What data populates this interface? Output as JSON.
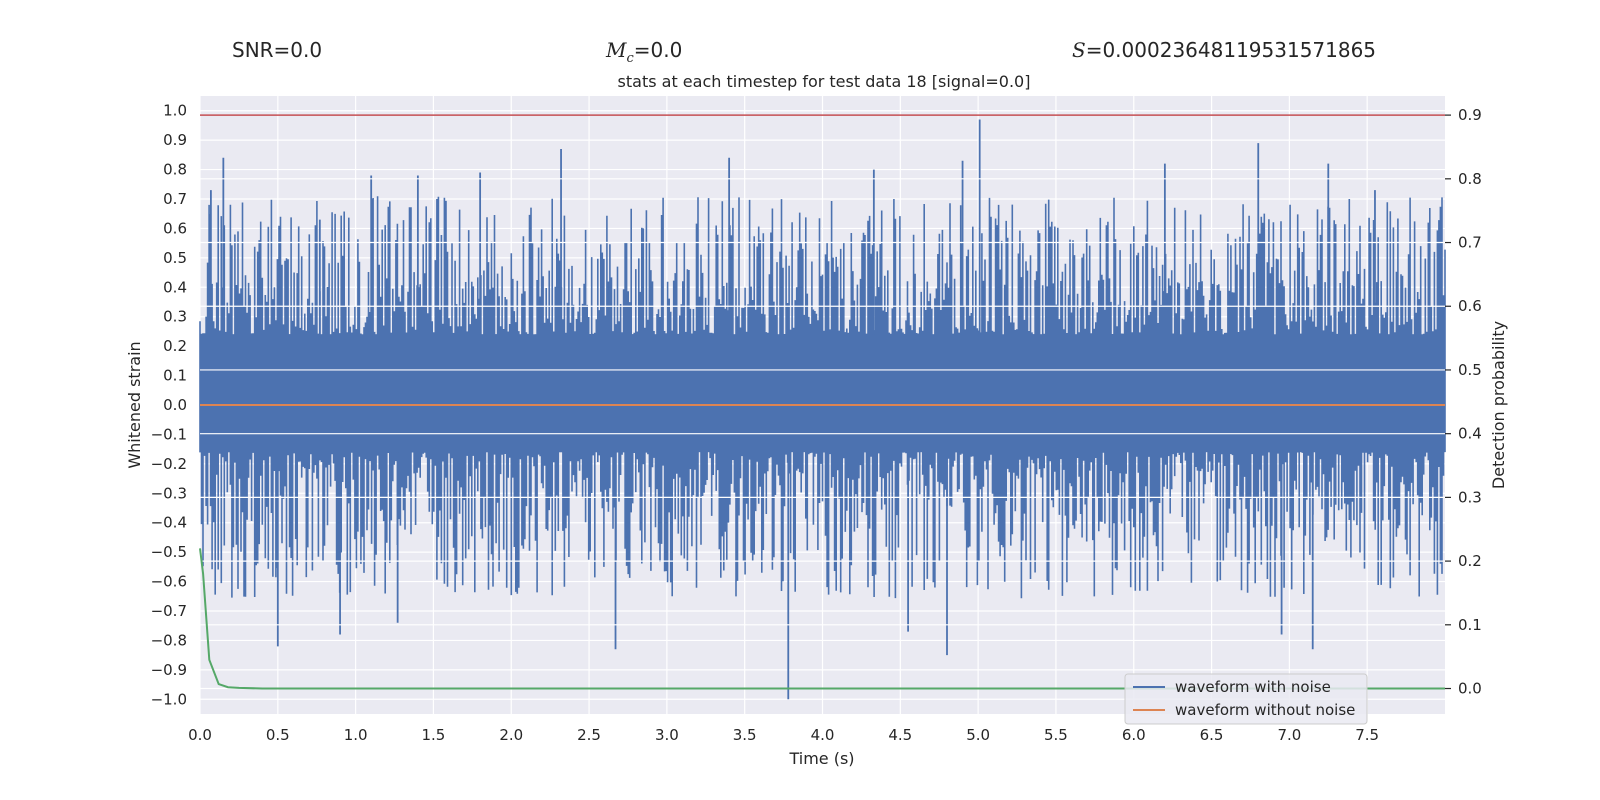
{
  "stats": {
    "snr": "SNR=0.0",
    "mc_symbol": "M",
    "mc_sub": "c",
    "mc_value": "=0.0",
    "s_symbol": "S",
    "s_value": "=0.00023648119531571865"
  },
  "chart_data": {
    "type": "line",
    "title": "stats at each timestep for test data 18 [signal=0.0]",
    "xlabel": "Time (s)",
    "ylabel_left": "Whitened strain",
    "ylabel_right": "Detection probability",
    "xlim": [
      0.0,
      8.0
    ],
    "ylim_left": [
      -1.05,
      1.05
    ],
    "ylim_right": [
      -0.04,
      0.93
    ],
    "grid": true,
    "legend_position": "bottom-right",
    "x_ticks": [
      "0.0",
      "0.5",
      "1.0",
      "1.5",
      "2.0",
      "2.5",
      "3.0",
      "3.5",
      "4.0",
      "4.5",
      "5.0",
      "5.5",
      "6.0",
      "6.5",
      "7.0",
      "7.5"
    ],
    "y_ticks_left": [
      "1.0",
      "0.9",
      "0.8",
      "0.7",
      "0.6",
      "0.5",
      "0.4",
      "0.3",
      "0.2",
      "0.1",
      "0.0",
      "−0.1",
      "−0.2",
      "−0.3",
      "−0.4",
      "−0.5",
      "−0.6",
      "−0.7",
      "−0.8",
      "−0.9",
      "−1.0"
    ],
    "y_ticks_right": [
      "0.9",
      "0.8",
      "0.7",
      "0.6",
      "0.5",
      "0.4",
      "0.3",
      "0.2",
      "0.1",
      "0.0"
    ],
    "threshold": 0.9,
    "colors": {
      "noise": "#4c72b0",
      "clean": "#dd8452",
      "prob": "#55a868",
      "threshold": "#c44e52",
      "background": "#eaeaf2",
      "grid": "#ffffff"
    },
    "series": [
      {
        "name": "waveform with noise",
        "axis": "left",
        "peaks": [
          {
            "x": 0.07,
            "y": 0.73
          },
          {
            "x": 0.15,
            "y": 0.84
          },
          {
            "x": 0.5,
            "y": -0.82
          },
          {
            "x": 0.77,
            "y": 0.63
          },
          {
            "x": 0.9,
            "y": -0.78
          },
          {
            "x": 1.1,
            "y": 0.78
          },
          {
            "x": 1.27,
            "y": -0.74
          },
          {
            "x": 1.4,
            "y": 0.78
          },
          {
            "x": 1.8,
            "y": 0.79
          },
          {
            "x": 2.32,
            "y": 0.87
          },
          {
            "x": 2.67,
            "y": -0.83
          },
          {
            "x": 3.4,
            "y": 0.84
          },
          {
            "x": 3.78,
            "y": -1.0
          },
          {
            "x": 4.33,
            "y": 0.8
          },
          {
            "x": 4.55,
            "y": -0.77
          },
          {
            "x": 4.8,
            "y": -0.85
          },
          {
            "x": 4.9,
            "y": 0.83
          },
          {
            "x": 5.01,
            "y": 0.97
          },
          {
            "x": 6.2,
            "y": 0.82
          },
          {
            "x": 6.8,
            "y": 0.89
          },
          {
            "x": 6.95,
            "y": -0.78
          },
          {
            "x": 7.15,
            "y": -0.83
          },
          {
            "x": 7.25,
            "y": 0.82
          },
          {
            "x": 7.55,
            "y": 0.73
          }
        ]
      },
      {
        "name": "waveform without noise",
        "axis": "left",
        "x": [
          0.0,
          8.0
        ],
        "y": [
          0.0,
          0.0
        ]
      },
      {
        "axis": "right",
        "x": [
          0.0,
          0.02,
          0.06,
          0.12,
          0.18,
          0.25,
          0.4,
          8.0
        ],
        "y": [
          0.22,
          0.18,
          0.045,
          0.007,
          0.002,
          0.001,
          0.0,
          0.0
        ]
      }
    ]
  }
}
